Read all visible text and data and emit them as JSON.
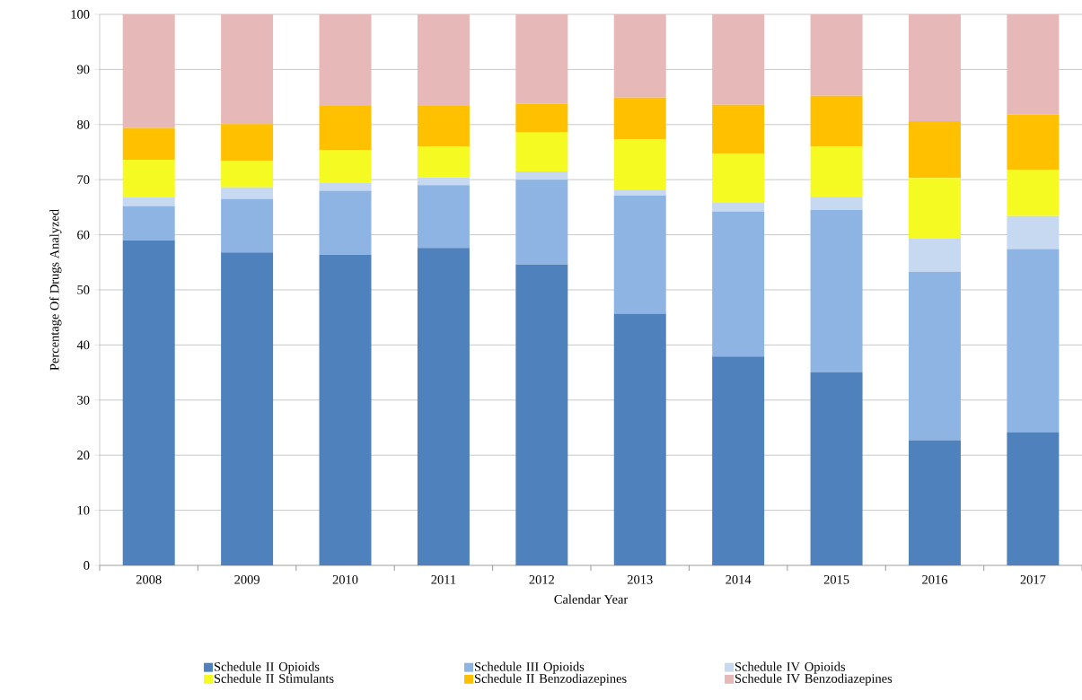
{
  "chart_data": {
    "type": "bar",
    "stacked": true,
    "xlabel": "Calendar Year",
    "ylabel": "Percentage Of Drugs Analyzed",
    "categories": [
      "2008",
      "2009",
      "2010",
      "2011",
      "2012",
      "2013",
      "2014",
      "2015",
      "2016",
      "2017"
    ],
    "series": [
      {
        "name": "Schedule II Opioids",
        "color": "#4f81bd",
        "values": [
          59.0,
          56.8,
          56.4,
          57.6,
          54.6,
          45.7,
          37.9,
          35.0,
          22.7,
          24.2
        ]
      },
      {
        "name": "Schedule III Opioids",
        "color": "#8eb4e3",
        "values": [
          6.2,
          9.7,
          11.6,
          11.4,
          15.4,
          21.4,
          26.3,
          29.5,
          30.6,
          33.2
        ]
      },
      {
        "name": "Schedule IV Opioids",
        "color": "#c6d9f1",
        "values": [
          1.6,
          2.1,
          1.4,
          1.4,
          1.5,
          1.1,
          1.7,
          2.4,
          6.0,
          6.0
        ]
      },
      {
        "name": "Schedule II Stimulants",
        "color": "#f5fa23",
        "values": [
          6.8,
          4.8,
          6.0,
          5.6,
          7.1,
          9.1,
          8.8,
          9.1,
          11.0,
          8.4
        ]
      },
      {
        "name": "Schedule II Benzodiazepines",
        "color": "#ffc000",
        "values": [
          5.8,
          6.7,
          8.0,
          7.4,
          5.2,
          7.6,
          8.9,
          9.2,
          10.3,
          10.0
        ]
      },
      {
        "name": "Schedule IV Benzodiazepines",
        "color": "#e6b8b7",
        "values": [
          20.6,
          19.9,
          16.6,
          16.6,
          16.2,
          15.1,
          16.4,
          14.8,
          19.4,
          18.2
        ]
      }
    ],
    "ylim": [
      0,
      100
    ],
    "yticks": [
      0,
      10,
      20,
      30,
      40,
      50,
      60,
      70,
      80,
      90,
      100
    ],
    "grid": "y",
    "legend": "bottom"
  }
}
